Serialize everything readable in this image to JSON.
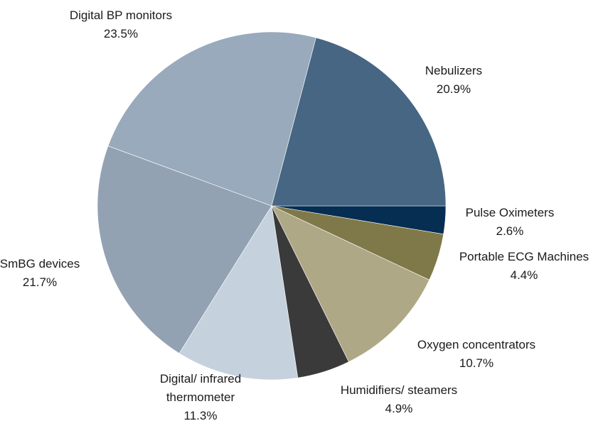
{
  "chart_data": {
    "type": "pie",
    "categories": [
      "Pulse Oximeters",
      "Portable ECG Machines",
      "Oxygen concentrators",
      "Humidifiers/ steamers",
      "Digital/ infrared thermometer",
      "SmBG devices",
      "Digital BP monitors",
      "Nebulizers"
    ],
    "values": [
      2.6,
      4.4,
      10.7,
      4.9,
      11.3,
      21.7,
      23.5,
      20.9
    ],
    "value_labels": [
      "2.6%",
      "4.4%",
      "10.7%",
      "4.9%",
      "11.3%",
      "21.7%",
      "23.5%",
      "20.9%"
    ],
    "colors": [
      "#062d52",
      "#7f7848",
      "#aea886",
      "#3a3a3a",
      "#c5d1dd",
      "#93a2b3",
      "#98aabb",
      "#466683"
    ]
  }
}
